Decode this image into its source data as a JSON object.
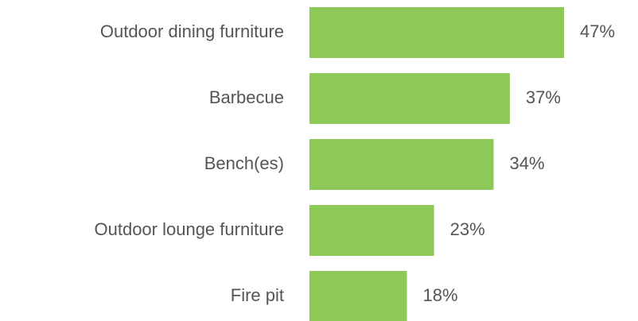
{
  "chart_data": {
    "type": "bar",
    "orientation": "horizontal",
    "categories": [
      "Outdoor dining furniture",
      "Barbecue",
      "Bench(es)",
      "Outdoor lounge furniture",
      "Fire pit"
    ],
    "values": [
      47,
      37,
      34,
      23,
      18
    ],
    "value_labels": [
      "47%",
      "37%",
      "34%",
      "23%",
      "18%"
    ],
    "color": "#8dc957"
  }
}
